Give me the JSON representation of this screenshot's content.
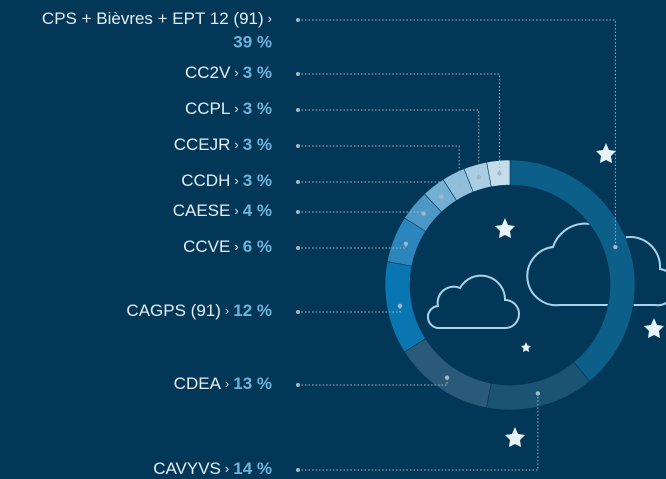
{
  "chart_data": {
    "type": "donut",
    "separator": "›",
    "categories": [
      "CPS + Bièvres + EPT 12 (91)",
      "CC2V",
      "CCPL",
      "CCEJR",
      "CCDH",
      "CAESE",
      "CCVE",
      "CAGPS (91)",
      "CDEA",
      "CAVYVS"
    ],
    "values": [
      39,
      3,
      3,
      3,
      3,
      4,
      6,
      12,
      13,
      14
    ],
    "value_labels": [
      "39 %",
      "3 %",
      "3 %",
      "3 %",
      "3 %",
      "4 %",
      "6 %",
      "12 %",
      "13 %",
      "14 %"
    ],
    "colors": [
      "#0b5f88",
      "#c5dcea",
      "#a9cde3",
      "#8fbfdc",
      "#73aed3",
      "#4c97c5",
      "#2a86bd",
      "#0a76b1",
      "#2a5a7a",
      "#1b5373"
    ]
  }
}
